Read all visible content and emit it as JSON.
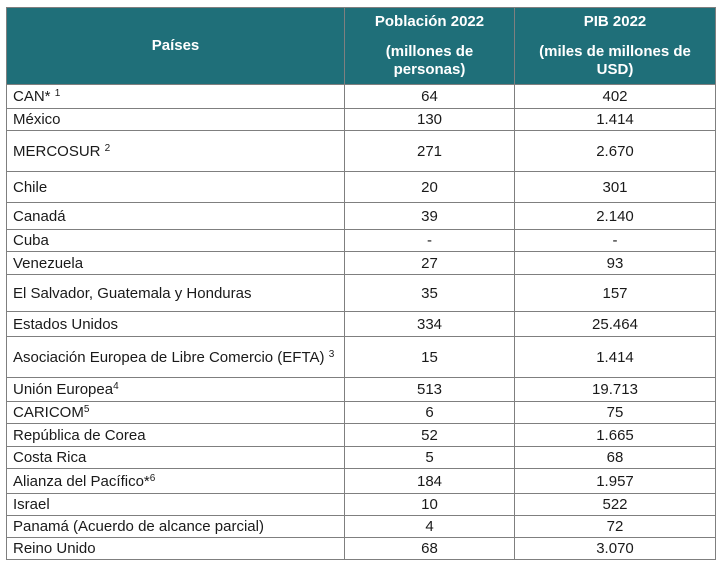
{
  "header": {
    "country_col": "Países",
    "population_title": "Población 2022",
    "population_unit": "(millones de personas)",
    "gdp_title": "PIB 2022",
    "gdp_unit": "(miles de millones de USD)"
  },
  "rows": [
    {
      "name": "CAN* ",
      "sup": "1",
      "population": "64",
      "gdp": "402"
    },
    {
      "name": "México",
      "sup": "",
      "population": "130",
      "gdp": "1.414"
    },
    {
      "name": "MERCOSUR ",
      "sup": "2",
      "population": "271",
      "gdp": "2.670"
    },
    {
      "name": "Chile",
      "sup": "",
      "population": "20",
      "gdp": "301"
    },
    {
      "name": "Canadá",
      "sup": "",
      "population": "39",
      "gdp": "2.140"
    },
    {
      "name": "Cuba",
      "sup": "",
      "population": "-",
      "gdp": "-"
    },
    {
      "name": "Venezuela",
      "sup": "",
      "population": "27",
      "gdp": "93"
    },
    {
      "name": "El Salvador, Guatemala y Honduras",
      "sup": "",
      "population": "35",
      "gdp": "157"
    },
    {
      "name": "Estados Unidos",
      "sup": "",
      "population": "334",
      "gdp": "25.464"
    },
    {
      "name": "Asociación Europea de Libre Comercio (EFTA) ",
      "sup": "3",
      "population": "15",
      "gdp": "1.414"
    },
    {
      "name": "Unión Europea",
      "sup": "4",
      "population": "513",
      "gdp": "19.713"
    },
    {
      "name": "CARICOM",
      "sup": "5",
      "population": "6",
      "gdp": "75"
    },
    {
      "name": "República de Corea",
      "sup": "",
      "population": "52",
      "gdp": "1.665"
    },
    {
      "name": "Costa Rica",
      "sup": "",
      "population": "5",
      "gdp": "68"
    },
    {
      "name": "Alianza del Pacífico*",
      "sup": "6",
      "population": "184",
      "gdp": "1.957"
    },
    {
      "name": "Israel",
      "sup": "",
      "population": "10",
      "gdp": "522"
    },
    {
      "name": "Panamá (Acuerdo de alcance parcial)",
      "sup": "",
      "population": "4",
      "gdp": "72"
    },
    {
      "name": "Reino Unido",
      "sup": "",
      "population": "68",
      "gdp": "3.070"
    }
  ]
}
